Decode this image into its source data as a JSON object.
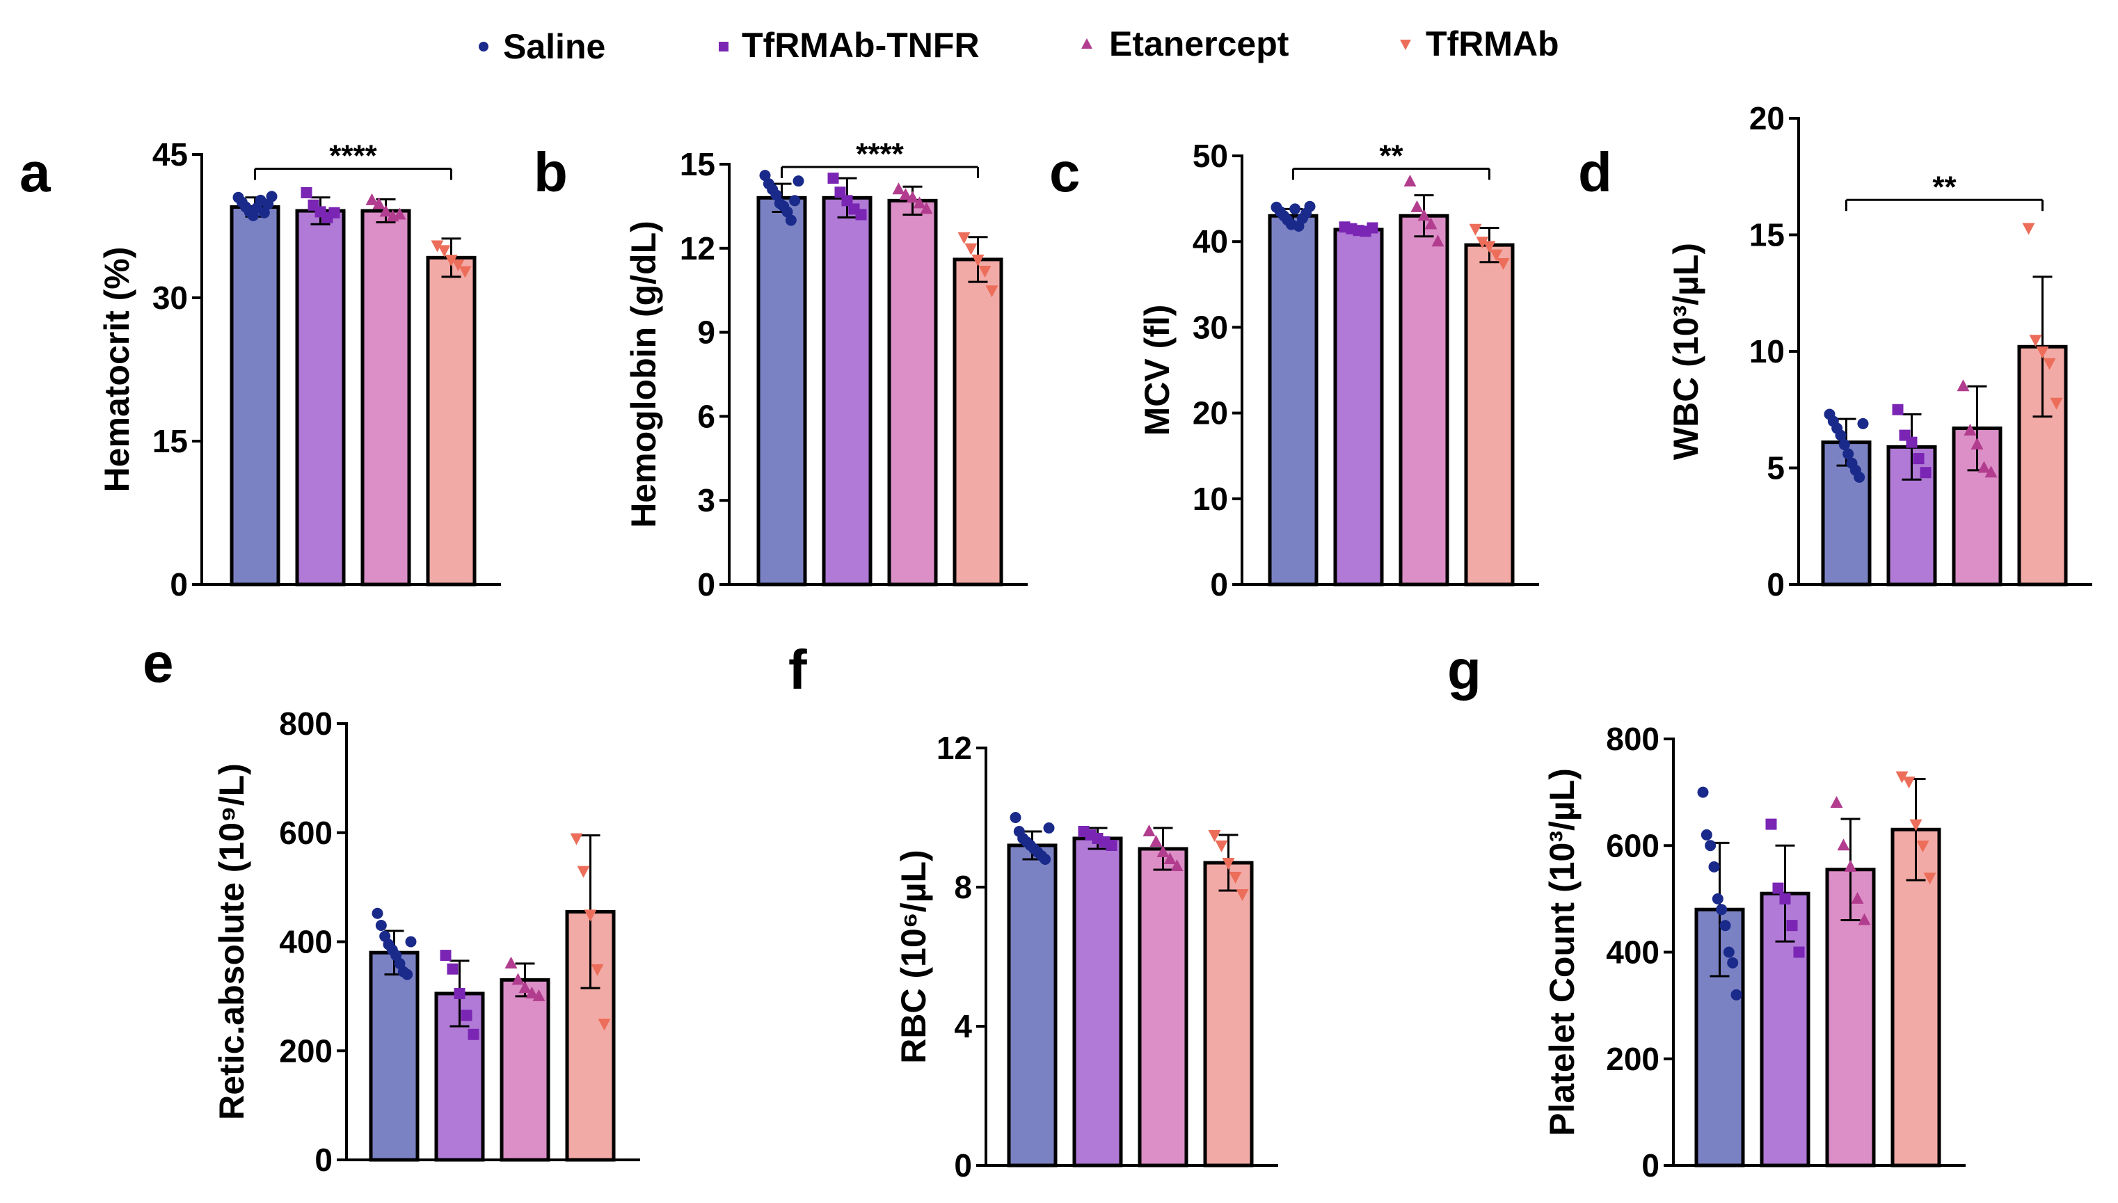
{
  "legend": [
    {
      "label": "Saline",
      "marker": "circle",
      "color": "#1a2a8a",
      "bar_color": "#7b82c4"
    },
    {
      "label": "TfRMAb-TNFR",
      "marker": "square",
      "color": "#7a25b4",
      "bar_color": "#b07ad6"
    },
    {
      "label": "Etanercept",
      "marker": "triangle-up",
      "color": "#b23d8f",
      "bar_color": "#dc8fc6"
    },
    {
      "label": "TfRMAb",
      "marker": "triangle-down",
      "color": "#ec6e5a",
      "bar_color": "#f2aaa6"
    }
  ],
  "chart_data": [
    {
      "type": "bar",
      "panel": "a",
      "ylabel": "Hematocrit (%)",
      "ylim": [
        0,
        45
      ],
      "ticks": [
        0,
        15,
        30,
        45
      ],
      "categories": [
        "Saline",
        "TfRMAb-TNFR",
        "Etanercept",
        "TfRMAb"
      ],
      "values": [
        39.5,
        39.1,
        39.1,
        34.2
      ],
      "errors": [
        1.0,
        1.4,
        1.2,
        2.0
      ],
      "points": [
        [
          40.5,
          40.0,
          39.5,
          39.0,
          38.6,
          39.4,
          40.2,
          38.9,
          39.8,
          40.6
        ],
        [
          41.0,
          39.7,
          39.0,
          38.4,
          38.9
        ],
        [
          40.2,
          39.8,
          39.0,
          38.5,
          38.7
        ],
        [
          35.5,
          35.0,
          34.0,
          33.5,
          32.8
        ]
      ],
      "significance": {
        "label": "****",
        "from": 0,
        "to": 3,
        "y": 43.5
      }
    },
    {
      "type": "bar",
      "panel": "b",
      "ylabel": "Hemoglobin (g/dL)",
      "ylim": [
        0,
        15
      ],
      "ticks": [
        0,
        3,
        6,
        9,
        12,
        15
      ],
      "categories": [
        "Saline",
        "TfRMAb-TNFR",
        "Etanercept",
        "TfRMAb"
      ],
      "values": [
        13.8,
        13.8,
        13.7,
        11.6
      ],
      "errors": [
        0.5,
        0.7,
        0.5,
        0.8
      ],
      "points": [
        [
          14.6,
          14.3,
          14.1,
          13.9,
          13.6,
          13.5,
          13.3,
          13.0,
          13.7,
          14.4
        ],
        [
          14.5,
          14.0,
          13.7,
          13.4,
          13.2
        ],
        [
          14.1,
          13.9,
          13.8,
          13.6,
          13.4
        ],
        [
          12.4,
          12.0,
          11.6,
          11.2,
          10.5
        ]
      ],
      "significance": {
        "label": "****",
        "from": 0,
        "to": 3,
        "y": 14.9
      }
    },
    {
      "type": "bar",
      "panel": "c",
      "ylabel": "MCV (fl)",
      "ylim": [
        0,
        50
      ],
      "ticks": [
        0,
        10,
        20,
        30,
        40,
        50
      ],
      "categories": [
        "Saline",
        "TfRMAb-TNFR",
        "Etanercept",
        "TfRMAb"
      ],
      "values": [
        43.0,
        41.4,
        43.0,
        39.6
      ],
      "errors": [
        0.8,
        0.3,
        2.4,
        2.0
      ],
      "points": [
        [
          44.0,
          43.5,
          43.0,
          42.5,
          42.0,
          43.8,
          41.8,
          42.7,
          43.3,
          44.1
        ],
        [
          41.7,
          41.5,
          41.3,
          41.2,
          41.6
        ],
        [
          47.0,
          44.0,
          43.0,
          42.0,
          40.0
        ],
        [
          41.5,
          40.0,
          39.5,
          38.5,
          37.5
        ]
      ],
      "significance": {
        "label": "**",
        "from": 0,
        "to": 3,
        "y": 48.5
      }
    },
    {
      "type": "bar",
      "panel": "d",
      "ylabel": "WBC (10³/µL)",
      "ylim": [
        0,
        20
      ],
      "ticks": [
        0,
        5,
        10,
        15,
        20
      ],
      "categories": [
        "Saline",
        "TfRMAb-TNFR",
        "Etanercept",
        "TfRMAb"
      ],
      "values": [
        6.1,
        5.9,
        6.7,
        10.2
      ],
      "errors": [
        1.0,
        1.4,
        1.8,
        3.0
      ],
      "points": [
        [
          7.3,
          7.0,
          6.7,
          6.4,
          6.0,
          5.6,
          5.2,
          4.9,
          4.6,
          6.9
        ],
        [
          7.5,
          6.4,
          6.1,
          5.4,
          4.8
        ],
        [
          8.5,
          6.6,
          6.0,
          5.0,
          4.8
        ],
        [
          15.3,
          10.5,
          10.0,
          9.5,
          7.8
        ]
      ],
      "significance": {
        "label": "**",
        "from": 0,
        "to": 3,
        "y": 16.5
      }
    },
    {
      "type": "bar",
      "panel": "e",
      "ylabel": "Retic.absolute (10⁹/L)",
      "ylim": [
        0,
        800
      ],
      "ticks": [
        0,
        200,
        400,
        600,
        800
      ],
      "categories": [
        "Saline",
        "TfRMAb-TNFR",
        "Etanercept",
        "TfRMAb"
      ],
      "values": [
        380,
        305,
        330,
        455
      ],
      "errors": [
        40,
        60,
        30,
        140
      ],
      "points": [
        [
          452,
          430,
          410,
          395,
          385,
          375,
          360,
          345,
          340,
          400
        ],
        [
          375,
          350,
          305,
          265,
          230
        ],
        [
          360,
          330,
          315,
          305,
          300
        ],
        [
          590,
          530,
          450,
          350,
          250
        ]
      ],
      "significance": null
    },
    {
      "type": "bar",
      "panel": "f",
      "ylabel": "RBC (10⁶/µL)",
      "ylim": [
        0,
        12
      ],
      "ticks": [
        0,
        4,
        8,
        12
      ],
      "categories": [
        "Saline",
        "TfRMAb-TNFR",
        "Etanercept",
        "TfRMAb"
      ],
      "values": [
        9.2,
        9.4,
        9.1,
        8.7
      ],
      "errors": [
        0.4,
        0.3,
        0.6,
        0.8
      ],
      "points": [
        [
          10.0,
          9.6,
          9.4,
          9.3,
          9.2,
          9.1,
          9.0,
          8.9,
          8.8,
          9.7
        ],
        [
          9.6,
          9.5,
          9.4,
          9.3,
          9.2
        ],
        [
          9.6,
          9.3,
          9.0,
          8.8,
          8.6
        ],
        [
          9.5,
          9.2,
          8.7,
          8.3,
          7.8
        ]
      ],
      "significance": null
    },
    {
      "type": "bar",
      "panel": "g",
      "ylabel": "Platelet Count (10³/µL)",
      "ylim": [
        0,
        800
      ],
      "ticks": [
        0,
        200,
        400,
        600,
        800
      ],
      "categories": [
        "Saline",
        "TfRMAb-TNFR",
        "Etanercept",
        "TfRMAb"
      ],
      "values": [
        480,
        510,
        555,
        630
      ],
      "errors": [
        125,
        90,
        95,
        95
      ],
      "points": [
        [
          700,
          620,
          600,
          560,
          500,
          480,
          450,
          400,
          380,
          320
        ],
        [
          640,
          520,
          500,
          450,
          400
        ],
        [
          680,
          600,
          560,
          500,
          460
        ],
        [
          730,
          720,
          640,
          600,
          540
        ]
      ],
      "significance": null
    }
  ]
}
